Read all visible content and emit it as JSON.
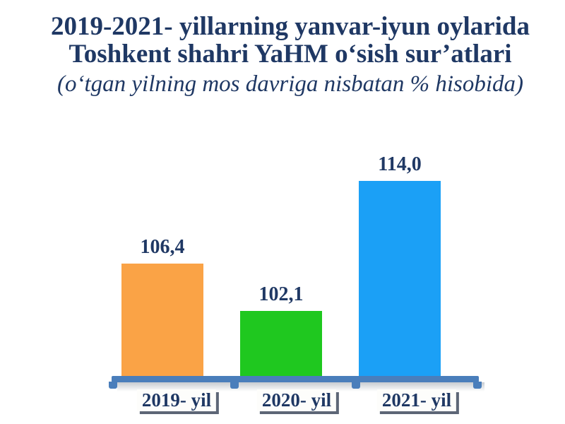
{
  "slide": {
    "title_line1": "2019-2021- yillarning yanvar-iyun oylarida",
    "title_line2": "Toshkent shahri YaHM o‘sish sur’atlari",
    "subtitle": "(o‘tgan yilning mos davriga nisbatan % hisobida)"
  },
  "chart_data": {
    "type": "bar",
    "title": "2019-2021- yillarning yanvar-iyun oylarida Toshkent shahri YaHM o‘sish sur’atlari",
    "subtitle": "(o‘tgan yilning mos davriga nisbatan % hisobida)",
    "categories": [
      "2019- yil",
      "2020- yil",
      "2021- yil"
    ],
    "values": [
      106.4,
      102.1,
      114.0
    ],
    "value_labels": [
      "106,4",
      "102,1",
      "114,0"
    ],
    "unit": "%",
    "bar_colors": [
      "#FAA346",
      "#1FC81F",
      "#1BA0F6"
    ],
    "text_color": "#1F3864",
    "axis_color": "#4A7EBB",
    "ylim": [
      96,
      116
    ],
    "grid": false,
    "legend": false,
    "value_label_position": "above-bar",
    "category_label_style": "white-box-with-dark-shadow",
    "orientation": "vertical"
  }
}
